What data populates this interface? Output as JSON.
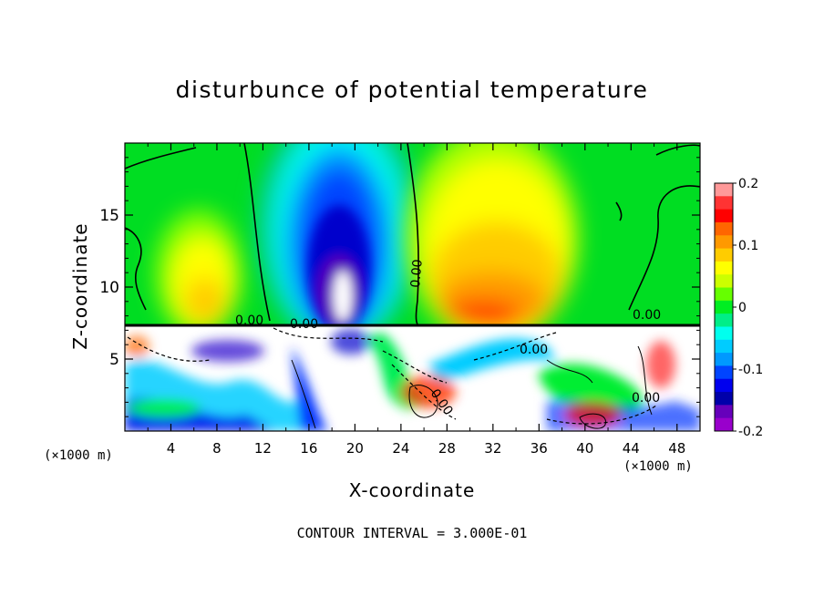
{
  "chart_data": {
    "type": "heatmap",
    "title": "disturbunce of potential temperature",
    "xlabel": "X-coordinate",
    "ylabel": "Z-coordinate",
    "x_unit": "(×1000 m)",
    "z_unit": "(×1000 m)",
    "xlim": [
      0,
      50
    ],
    "ylim": [
      0,
      20
    ],
    "x_ticks": [
      "4",
      "8",
      "12",
      "16",
      "20",
      "24",
      "28",
      "32",
      "36",
      "40",
      "44",
      "48"
    ],
    "y_ticks": [
      "5",
      "10",
      "15"
    ],
    "colorbar": {
      "range": [
        -0.2,
        0.2
      ],
      "tick_labels": [
        "0.2",
        "0.1",
        "0",
        "-0.1",
        "-0.2"
      ],
      "colors": [
        "#ff9999",
        "#ff3333",
        "#ff0000",
        "#ff6600",
        "#ff9900",
        "#ffcc00",
        "#ffff00",
        "#ccff00",
        "#66ff00",
        "#00ee22",
        "#00ee88",
        "#00ffee",
        "#00ccff",
        "#0099ff",
        "#0044ff",
        "#0000ee",
        "#0000aa",
        "#6600bb",
        "#9900cc"
      ]
    },
    "contour_labels": [
      "0.00",
      "0.00",
      "0.00",
      "0.00",
      "0.00",
      "0.00",
      "0.00",
      "0.00"
    ],
    "contour_interval": "CONTOUR INTERVAL = 3.000E-01",
    "features": [
      {
        "name": "upper negative anomaly",
        "x_center": 19,
        "z_top": 20,
        "z_bottom": 7.5,
        "min_value": -0.2
      },
      {
        "name": "upper positive anomaly (right)",
        "x_center": 32,
        "z_top": 20,
        "z_bottom": 7.5,
        "max_value": 0.12
      },
      {
        "name": "upper positive anomaly (left)",
        "x_center": 8,
        "z_top": 17,
        "z_bottom": 7.5,
        "max_value": 0.08
      },
      {
        "name": "turbulent boundary layer",
        "z_bottom": 0,
        "z_top": 7.5,
        "note": "values exceed colorbar range (white)"
      }
    ]
  }
}
